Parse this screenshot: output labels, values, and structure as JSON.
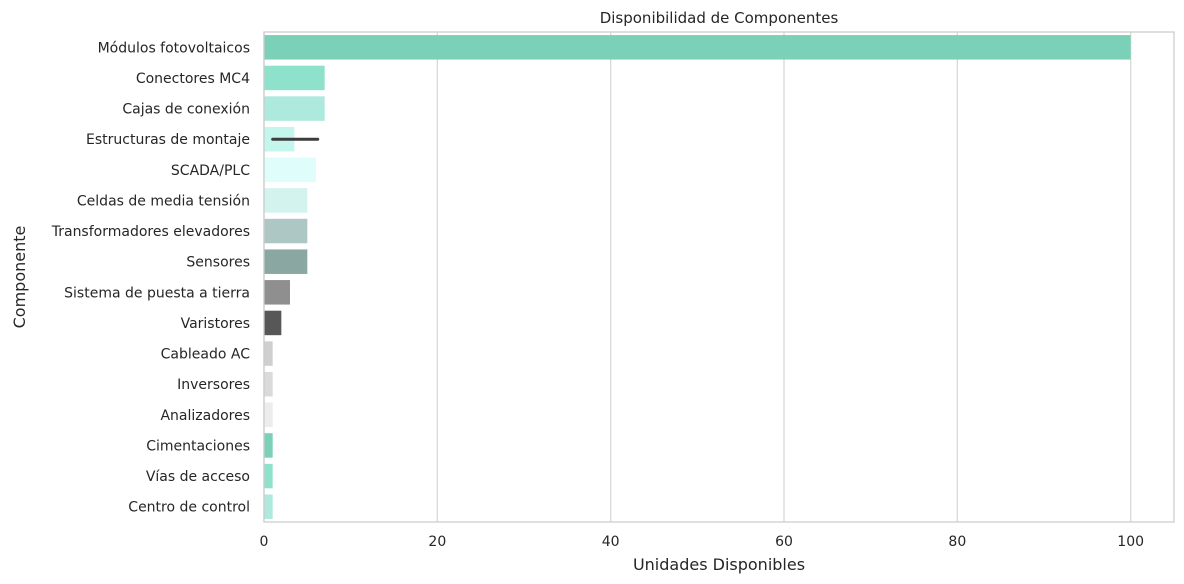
{
  "chart_data": {
    "type": "bar",
    "orientation": "horizontal",
    "title": "Disponibilidad de Componentes",
    "xlabel": "Unidades Disponibles",
    "ylabel": "Componente",
    "xlim": [
      0,
      105
    ],
    "xticks": [
      0,
      20,
      40,
      60,
      80,
      100
    ],
    "grid": "vertical",
    "categories": [
      "Módulos fotovoltaicos",
      "Conectores MC4",
      "Cajas de conexión",
      "Estructuras de montaje",
      "SCADA/PLC",
      "Celdas de media tensión",
      "Transformadores elevadores",
      "Sensores",
      "Sistema de puesta a tierra",
      "Varistores",
      "Cableado AC",
      "Inversores",
      "Analizadores",
      "Cimentaciones",
      "Vías de acceso",
      "Centro de control"
    ],
    "values": [
      100,
      7,
      7,
      3.5,
      6,
      5,
      5,
      5,
      3,
      2,
      1,
      1,
      1,
      1,
      1,
      1
    ],
    "error_bars": [
      {
        "category": "Estructuras de montaje",
        "low": 1,
        "high": 6.2
      }
    ],
    "colors": [
      "#7ad1b8",
      "#8ee1ca",
      "#ade9dd",
      "#c4f6ee",
      "#dffdfb",
      "#d2f3ee",
      "#adc8c4",
      "#8aa7a2",
      "#8f8f8f",
      "#575757",
      "#cfcfcf",
      "#dadada",
      "#ececec",
      "#7ad1b8",
      "#8ee1ca",
      "#ade9dd"
    ]
  }
}
